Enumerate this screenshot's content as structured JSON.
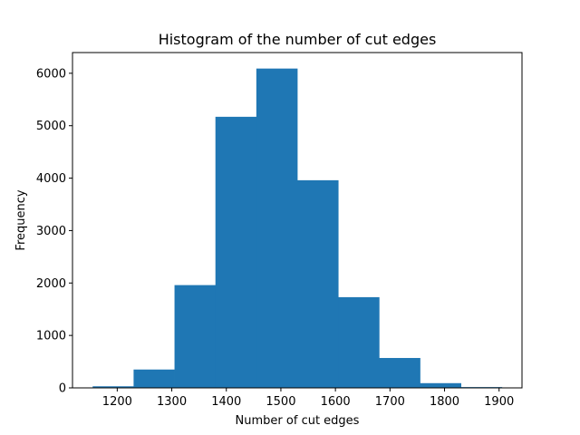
{
  "chart_data": {
    "type": "bar",
    "title": "Histogram of the number of cut edges",
    "xlabel": "Number of cut edges",
    "ylabel": "Frequency",
    "bin_edges": [
      1155,
      1230,
      1305,
      1380,
      1455,
      1530,
      1605,
      1680,
      1755,
      1830,
      1905
    ],
    "values": [
      30,
      350,
      1960,
      5170,
      6090,
      3960,
      1730,
      570,
      90,
      15
    ],
    "xlim": [
      1118,
      1942
    ],
    "ylim": [
      0,
      6395
    ],
    "xticks": [
      1200,
      1300,
      1400,
      1500,
      1600,
      1700,
      1800,
      1900
    ],
    "yticks": [
      0,
      1000,
      2000,
      3000,
      4000,
      5000,
      6000
    ],
    "bar_color": "#1f77b4",
    "grid": false,
    "legend": false
  }
}
